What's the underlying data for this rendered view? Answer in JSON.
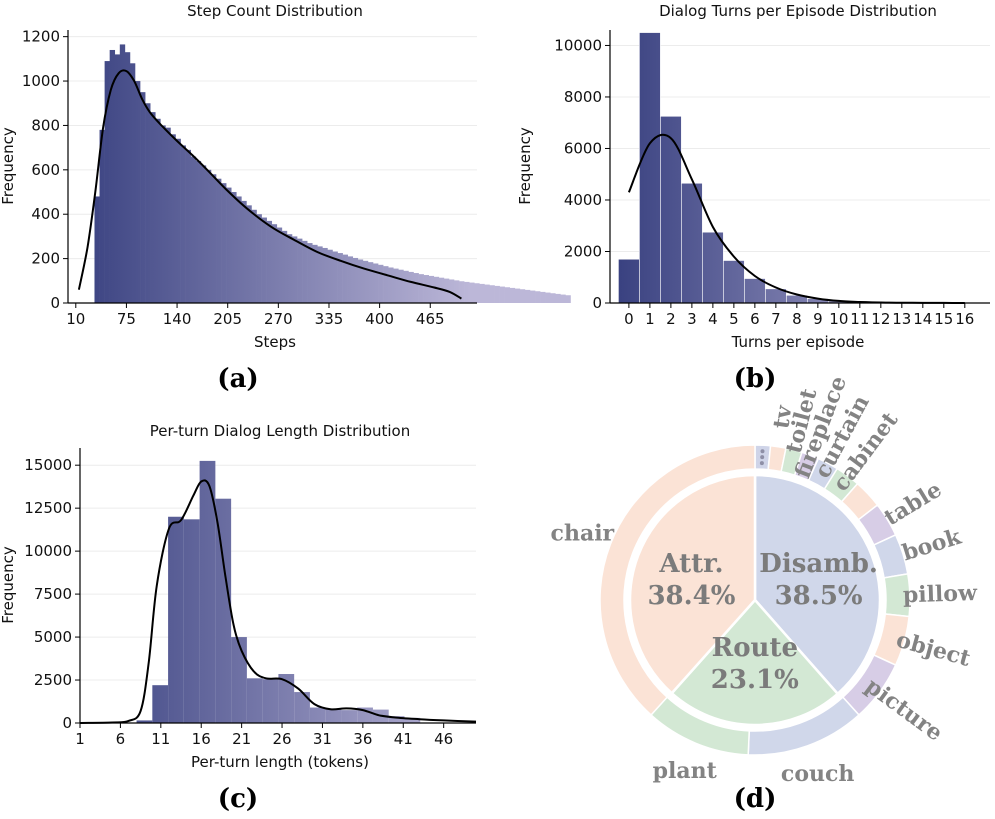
{
  "chart_data": [
    {
      "id": "a",
      "type": "bar",
      "panel_label": "(a)",
      "title": "Step Count Distribution",
      "xlabel": "Steps",
      "ylabel": "Frequency",
      "xlim": [
        0,
        525
      ],
      "ylim": [
        0,
        1230
      ],
      "xticks": [
        10,
        75,
        140,
        205,
        270,
        335,
        400,
        465
      ],
      "yticks": [
        0,
        200,
        400,
        600,
        800,
        1000,
        1200
      ],
      "bin_start": 34,
      "bin_width": 6.5,
      "values": [
        480,
        780,
        1090,
        1140,
        1120,
        1165,
        1130,
        1080,
        1000,
        950,
        900,
        860,
        830,
        800,
        790,
        760,
        740,
        710,
        690,
        660,
        640,
        620,
        600,
        580,
        560,
        540,
        520,
        500,
        480,
        460,
        440,
        420,
        400,
        385,
        370,
        355,
        340,
        325,
        310,
        300,
        290,
        280,
        270,
        262,
        255,
        248,
        240,
        232,
        225,
        218,
        210,
        203,
        196,
        190,
        184,
        178,
        172,
        166,
        160,
        155,
        150,
        145,
        140,
        135,
        130,
        126,
        122,
        118,
        114,
        110,
        106,
        102,
        98,
        95,
        92,
        89,
        86,
        83,
        80,
        77,
        74,
        71,
        68,
        65,
        62,
        59,
        56,
        53,
        50,
        47,
        44,
        41,
        38,
        35
      ],
      "kde_x": [
        14,
        25,
        35,
        45,
        55,
        65,
        75,
        85,
        95,
        105,
        120,
        140,
        160,
        180,
        205,
        230,
        260,
        290,
        320,
        350,
        380,
        410,
        440,
        470,
        490,
        505
      ],
      "kde_y": [
        60,
        250,
        500,
        790,
        960,
        1035,
        1045,
        1000,
        920,
        860,
        800,
        730,
        665,
        595,
        505,
        425,
        345,
        285,
        230,
        190,
        155,
        125,
        95,
        70,
        50,
        20
      ]
    },
    {
      "id": "b",
      "type": "bar",
      "panel_label": "(b)",
      "title": "Dialog Turns per Episode Distribution",
      "xlabel": "Turns per episode",
      "ylabel": "Frequency",
      "xlim": [
        -0.9,
        17.2
      ],
      "ylim": [
        0,
        10600
      ],
      "yticks": [
        0,
        2000,
        4000,
        6000,
        8000,
        10000
      ],
      "categories": [
        "0",
        "1",
        "2",
        "3",
        "4",
        "5",
        "6",
        "7",
        "8",
        "9",
        "10",
        "11",
        "12",
        "13",
        "14",
        "15",
        "16"
      ],
      "values": [
        1700,
        10500,
        7250,
        4650,
        2750,
        1650,
        950,
        550,
        300,
        170,
        80,
        40,
        20,
        10,
        5,
        3,
        2
      ],
      "kde_x": [
        0,
        1,
        2,
        3,
        4,
        5,
        6,
        7,
        8,
        9,
        10,
        11,
        12,
        13,
        14,
        15,
        16
      ],
      "kde_y": [
        4300,
        6200,
        6400,
        4800,
        2950,
        1800,
        1050,
        600,
        330,
        170,
        80,
        40,
        20,
        10,
        5,
        2,
        1
      ]
    },
    {
      "id": "c",
      "type": "bar",
      "panel_label": "(c)",
      "title": "Per-turn Dialog Length Distribution",
      "xlabel": "Per-turn length (tokens)",
      "ylabel": "Frequency",
      "xlim": [
        1,
        50
      ],
      "ylim": [
        0,
        16000
      ],
      "xticks": [
        1,
        6,
        11,
        16,
        21,
        26,
        31,
        36,
        41,
        46
      ],
      "yticks": [
        0,
        2500,
        5000,
        7500,
        10000,
        12500,
        15000
      ],
      "bin_start": 8,
      "bin_width": 1.95,
      "values": [
        150,
        2200,
        12000,
        11850,
        15250,
        13050,
        5000,
        2600,
        2550,
        2850,
        1800,
        900,
        800,
        750,
        900,
        780,
        400,
        300
      ],
      "kde_x": [
        1,
        5,
        7,
        8.5,
        9.5,
        10.5,
        12,
        13.5,
        15,
        16,
        17,
        18,
        19,
        20,
        21,
        22.5,
        24,
        26,
        28,
        30,
        32,
        34,
        36,
        38,
        40,
        43,
        46,
        50
      ],
      "kde_y": [
        0,
        30,
        120,
        700,
        3500,
        8000,
        11300,
        11800,
        13200,
        14050,
        13800,
        11700,
        8500,
        5700,
        4200,
        3000,
        2600,
        2550,
        2000,
        1100,
        800,
        850,
        750,
        450,
        320,
        220,
        150,
        80
      ]
    },
    {
      "id": "d",
      "type": "pie",
      "panel_label": "(d)",
      "inner": [
        {
          "label": "Disamb.",
          "pct": "38.5%",
          "value": 38.5,
          "color": "#d0d7ea"
        },
        {
          "label": "Route",
          "pct": "23.1%",
          "value": 23.1,
          "color": "#d3e8d4"
        },
        {
          "label": "Attr.",
          "pct": "38.4%",
          "value": 38.4,
          "color": "#fbe3d6"
        }
      ],
      "outer": [
        {
          "label": "",
          "value": 1.6,
          "color": "#cfd4e8",
          "dots": true
        },
        {
          "label": "tv",
          "value": 1.6,
          "color": "#fbe3d6"
        },
        {
          "label": "toilet",
          "value": 1.7,
          "color": "#d3e8d4"
        },
        {
          "label": "fireplace",
          "value": 1.8,
          "color": "#d7cde6"
        },
        {
          "label": "curtain",
          "value": 2.2,
          "color": "#d0d7ea"
        },
        {
          "label": "cabinet",
          "value": 2.6,
          "color": "#d3e8d4"
        },
        {
          "label": "",
          "value": 3.0,
          "color": "#fbe3d6"
        },
        {
          "label": "table",
          "value": 3.6,
          "color": "#d7cde6"
        },
        {
          "label": "book",
          "value": 4.2,
          "color": "#d0d7ea"
        },
        {
          "label": "pillow",
          "value": 4.4,
          "color": "#d3e8d4"
        },
        {
          "label": "object",
          "value": 5.2,
          "color": "#fbe3d6"
        },
        {
          "label": "picture",
          "value": 6.4,
          "color": "#d7cde6"
        },
        {
          "label": "couch",
          "value": 12.4,
          "color": "#d0d7ea"
        },
        {
          "label": "plant",
          "value": 11.0,
          "color": "#d3e8d4"
        },
        {
          "label": "chair",
          "value": 38.3,
          "color": "#fbe3d6"
        }
      ]
    }
  ]
}
